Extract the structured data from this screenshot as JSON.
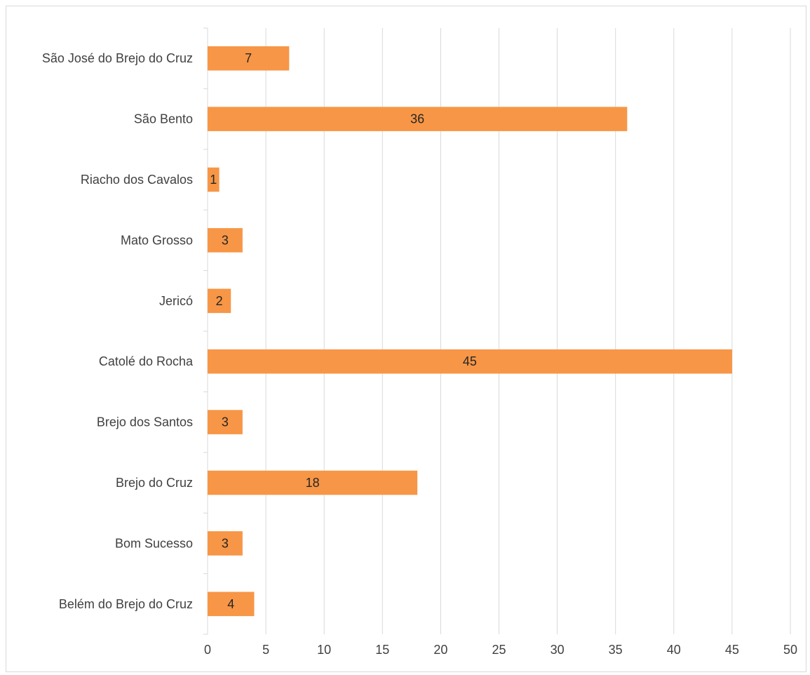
{
  "chart_data": {
    "type": "bar",
    "orientation": "horizontal",
    "title": "",
    "categories": [
      "São José do Brejo do Cruz",
      "São Bento",
      "Riacho dos Cavalos",
      "Mato Grosso",
      "Jericó",
      "Catolé do Rocha",
      "Brejo dos Santos",
      "Brejo do Cruz",
      "Bom Sucesso",
      "Belém do Brejo do Cruz"
    ],
    "values": [
      7,
      36,
      1,
      3,
      2,
      45,
      3,
      18,
      3,
      4
    ],
    "xlim": [
      0,
      50
    ],
    "xticks": [
      0,
      5,
      10,
      15,
      20,
      25,
      30,
      35,
      40,
      45,
      50
    ],
    "xlabel": "",
    "ylabel": "",
    "grid": "vertical",
    "legend": "none",
    "bar_color": "#F79646"
  }
}
